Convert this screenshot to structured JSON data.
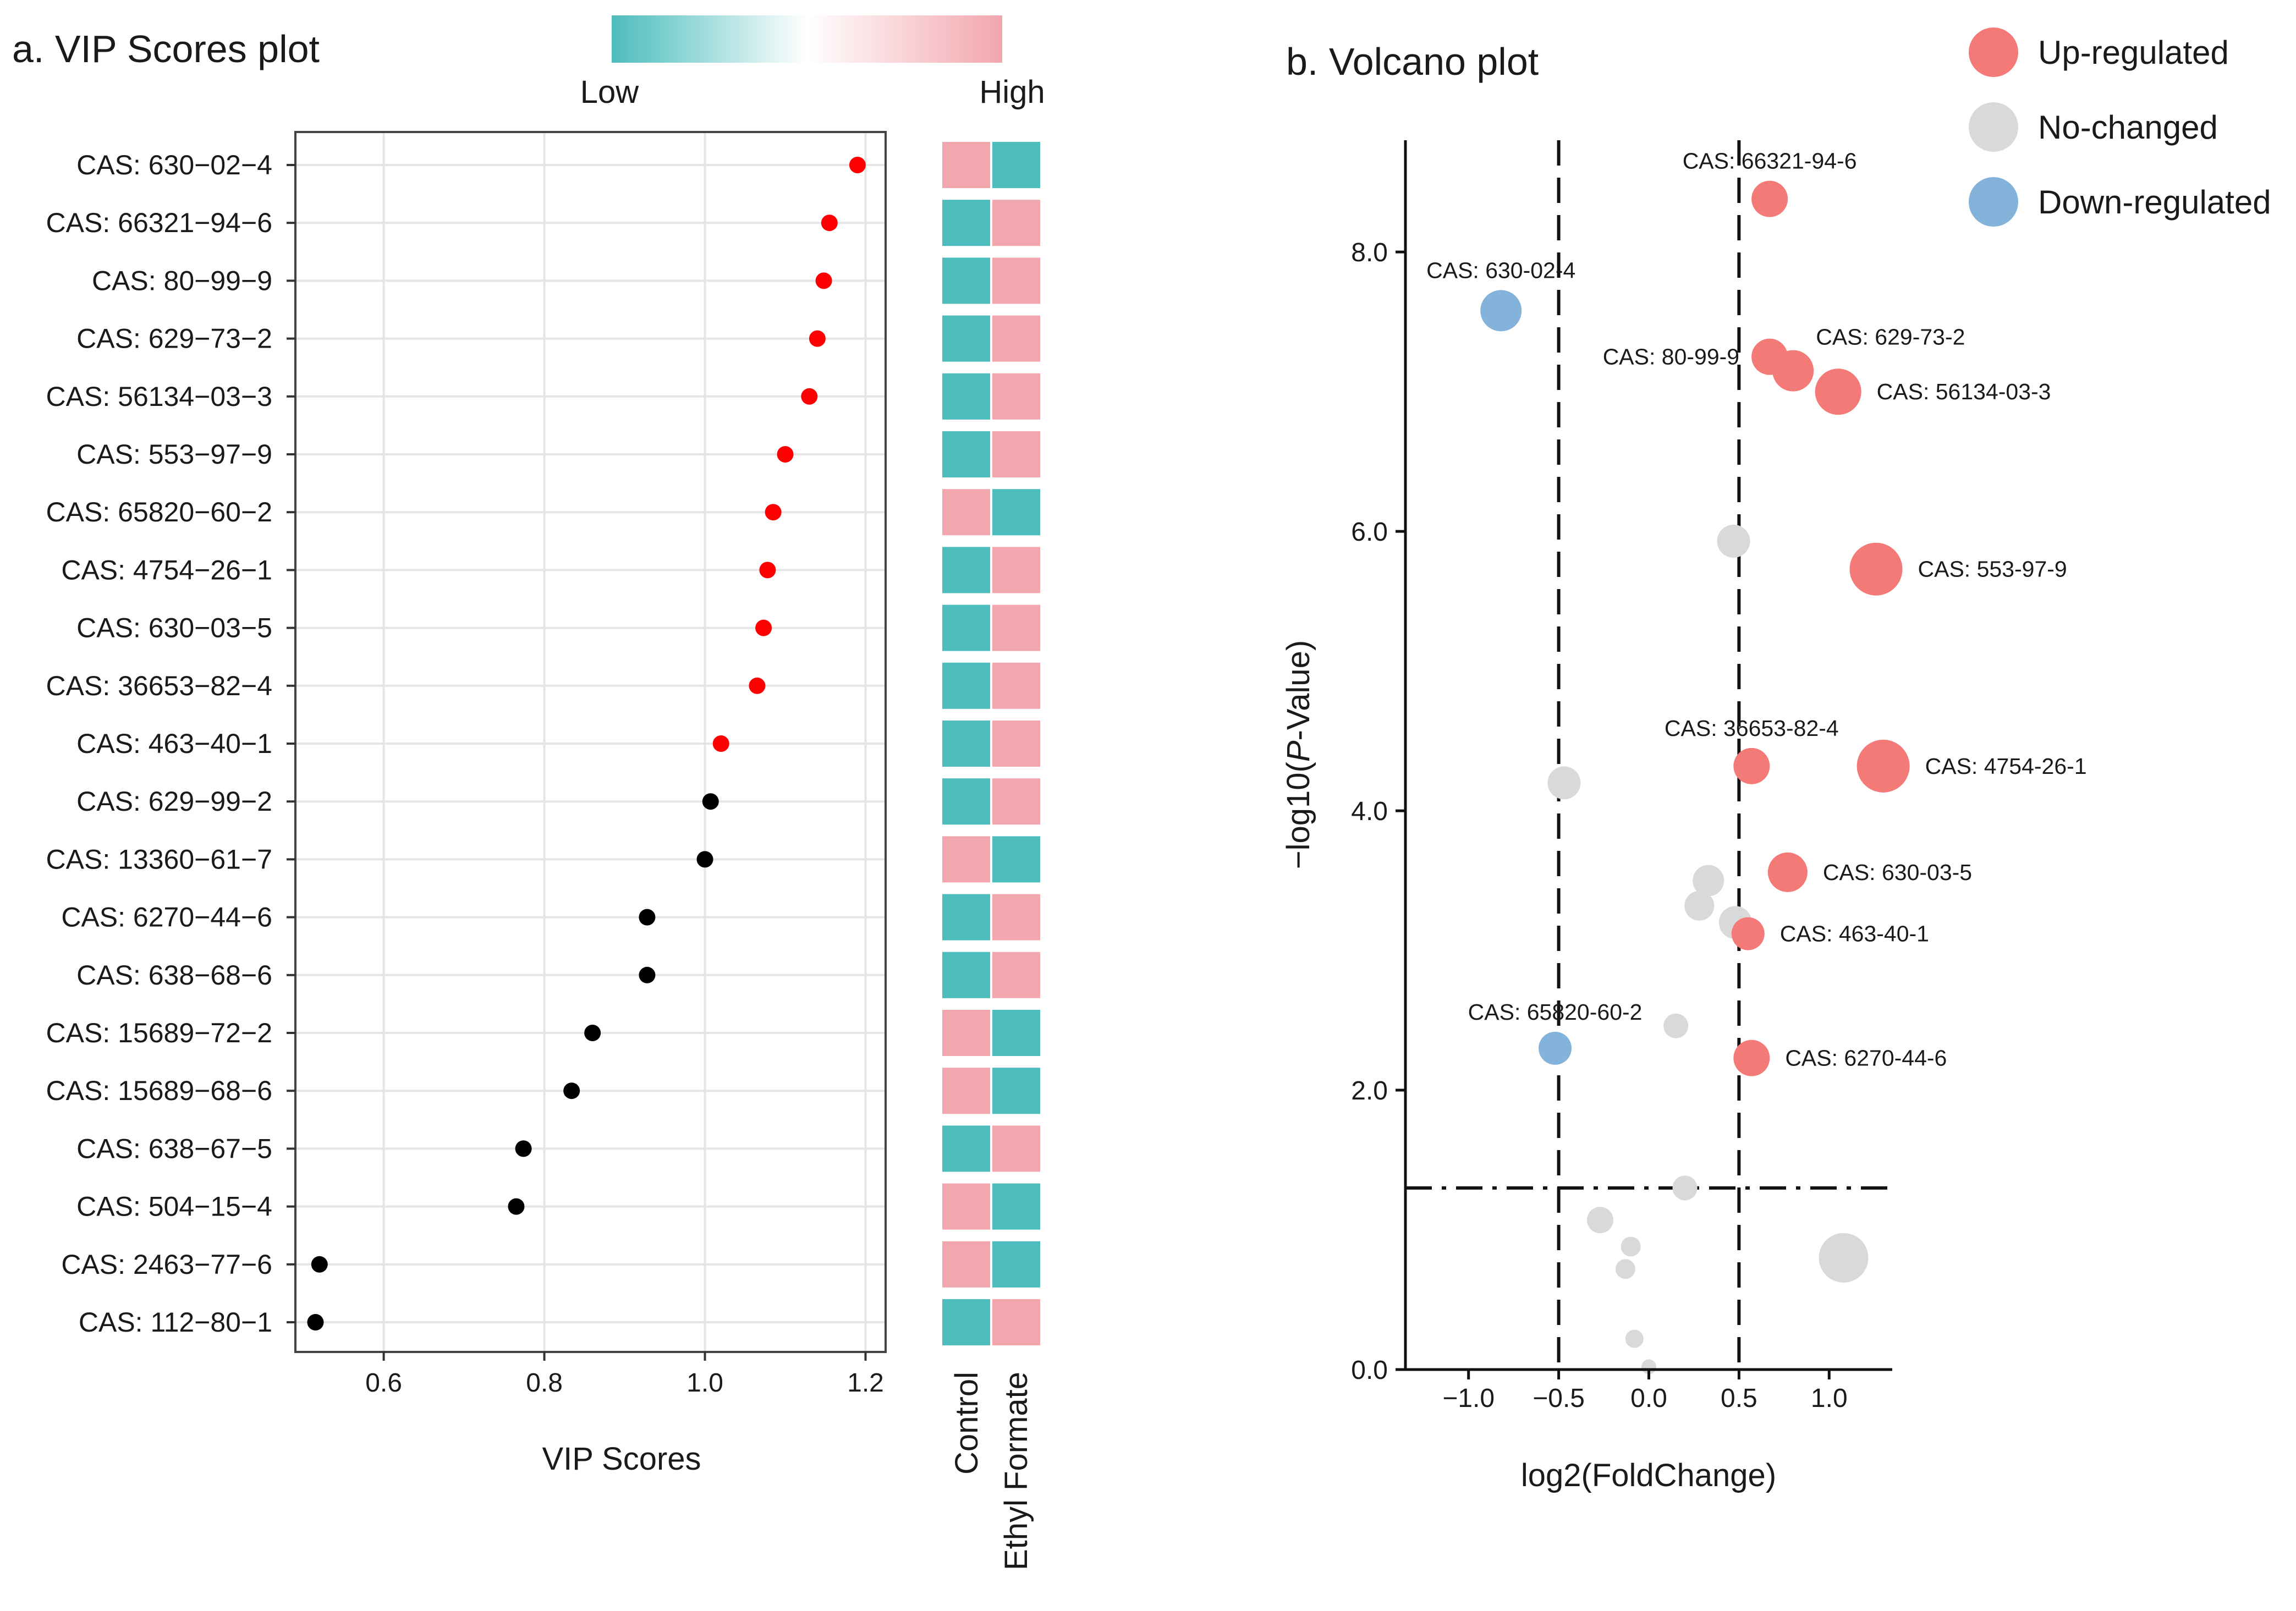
{
  "colors": {
    "low": "#4dbcbc",
    "high": "#f2a6ae",
    "vip_above": "#ff0000",
    "vip_below": "#000000",
    "up": "#f47a78",
    "nochange": "#d9d9d9",
    "down": "#83b3da"
  },
  "colorbar": {
    "low_label": "Low",
    "high_label": "High"
  },
  "chart_data": [
    {
      "type": "scatter",
      "title": "a. VIP Scores plot",
      "xlabel": "VIP Scores",
      "ylabel": "",
      "xlim": [
        0.49,
        1.225
      ],
      "xticks": [
        {
          "value": 0.6,
          "label": "0.6"
        },
        {
          "value": 0.8,
          "label": "0.8"
        },
        {
          "value": 1.0,
          "label": "1.0"
        },
        {
          "value": 1.2,
          "label": "1.2"
        }
      ],
      "vip_threshold": 1.0,
      "heatmap_columns": [
        "Control",
        "Ethyl Formate"
      ],
      "rows": [
        {
          "label": "CAS: 630−02−4",
          "vip": 1.19,
          "control": "high",
          "treatment": "low"
        },
        {
          "label": "CAS: 66321−94−6",
          "vip": 1.155,
          "control": "low",
          "treatment": "high"
        },
        {
          "label": "CAS: 80−99−9",
          "vip": 1.148,
          "control": "low",
          "treatment": "high"
        },
        {
          "label": "CAS: 629−73−2",
          "vip": 1.14,
          "control": "low",
          "treatment": "high"
        },
        {
          "label": "CAS: 56134−03−3",
          "vip": 1.13,
          "control": "low",
          "treatment": "high"
        },
        {
          "label": "CAS: 553−97−9",
          "vip": 1.1,
          "control": "low",
          "treatment": "high"
        },
        {
          "label": "CAS: 65820−60−2",
          "vip": 1.085,
          "control": "high",
          "treatment": "low"
        },
        {
          "label": "CAS: 4754−26−1",
          "vip": 1.078,
          "control": "low",
          "treatment": "high"
        },
        {
          "label": "CAS: 630−03−5",
          "vip": 1.073,
          "control": "low",
          "treatment": "high"
        },
        {
          "label": "CAS: 36653−82−4",
          "vip": 1.065,
          "control": "low",
          "treatment": "high"
        },
        {
          "label": "CAS: 463−40−1",
          "vip": 1.02,
          "control": "low",
          "treatment": "high"
        },
        {
          "label": "CAS: 629−99−2",
          "vip": 1.007,
          "control": "low",
          "treatment": "high"
        },
        {
          "label": "CAS: 13360−61−7",
          "vip": 1.0,
          "control": "high",
          "treatment": "low"
        },
        {
          "label": "CAS: 6270−44−6",
          "vip": 0.928,
          "control": "low",
          "treatment": "high"
        },
        {
          "label": "CAS: 638−68−6",
          "vip": 0.928,
          "control": "low",
          "treatment": "high"
        },
        {
          "label": "CAS: 15689−72−2",
          "vip": 0.86,
          "control": "high",
          "treatment": "low"
        },
        {
          "label": "CAS: 15689−68−6",
          "vip": 0.834,
          "control": "high",
          "treatment": "low"
        },
        {
          "label": "CAS: 638−67−5",
          "vip": 0.774,
          "control": "low",
          "treatment": "high"
        },
        {
          "label": "CAS: 504−15−4",
          "vip": 0.765,
          "control": "high",
          "treatment": "low"
        },
        {
          "label": "CAS: 2463−77−6",
          "vip": 0.52,
          "control": "high",
          "treatment": "low"
        },
        {
          "label": "CAS: 112−80−1",
          "vip": 0.515,
          "control": "low",
          "treatment": "high"
        }
      ]
    },
    {
      "type": "scatter",
      "title": "b. Volcano plot",
      "xlabel": "log2(FoldChange)",
      "ylabel_prefix": "−log10(",
      "ylabel_italic": "P",
      "ylabel_suffix": "-Value)",
      "xlim": [
        -1.35,
        1.35
      ],
      "ylim": [
        0,
        8.8
      ],
      "xticks": [
        {
          "value": -1.0,
          "label": "−1.0"
        },
        {
          "value": -0.5,
          "label": "−0.5"
        },
        {
          "value": 0.0,
          "label": "0.0"
        },
        {
          "value": 0.5,
          "label": "0.5"
        },
        {
          "value": 1.0,
          "label": "1.0"
        }
      ],
      "yticks": [
        {
          "value": 0.0,
          "label": "0.0"
        },
        {
          "value": 2.0,
          "label": "2.0"
        },
        {
          "value": 4.0,
          "label": "4.0"
        },
        {
          "value": 6.0,
          "label": "6.0"
        },
        {
          "value": 8.0,
          "label": "8.0"
        }
      ],
      "fc_thresholds": [
        -0.5,
        0.5
      ],
      "p_threshold": 1.3,
      "legend": [
        {
          "key": "up",
          "label": "Up-regulated"
        },
        {
          "key": "nochange",
          "label": "No-changed"
        },
        {
          "key": "down",
          "label": "Down-regulated"
        }
      ],
      "points": [
        {
          "x": 0.67,
          "y": 8.38,
          "group": "up",
          "size": 1.1,
          "label": "CAS: 66321-94-6",
          "label_pos": "above"
        },
        {
          "x": -0.82,
          "y": 7.58,
          "group": "down",
          "size": 1.25,
          "label": "CAS: 630-02-4",
          "label_pos": "above"
        },
        {
          "x": 0.67,
          "y": 7.25,
          "group": "up",
          "size": 1.1,
          "label": "CAS: 80-99-9",
          "label_pos": "left"
        },
        {
          "x": 0.8,
          "y": 7.15,
          "group": "up",
          "size": 1.25,
          "label": "CAS: 629-73-2",
          "label_pos": "upright"
        },
        {
          "x": 1.05,
          "y": 7.0,
          "group": "up",
          "size": 1.4,
          "label": "CAS: 56134-03-3",
          "label_pos": "right"
        },
        {
          "x": 0.47,
          "y": 5.93,
          "group": "nochange",
          "size": 1.0
        },
        {
          "x": 1.26,
          "y": 5.73,
          "group": "up",
          "size": 1.6,
          "label": "CAS: 553-97-9",
          "label_pos": "right"
        },
        {
          "x": 0.57,
          "y": 4.32,
          "group": "up",
          "size": 1.1,
          "label": "CAS: 36653-82-4",
          "label_pos": "above"
        },
        {
          "x": 1.3,
          "y": 4.32,
          "group": "up",
          "size": 1.6,
          "label": "CAS: 4754-26-1",
          "label_pos": "right"
        },
        {
          "x": -0.47,
          "y": 4.2,
          "group": "nochange",
          "size": 1.0
        },
        {
          "x": 0.77,
          "y": 3.56,
          "group": "up",
          "size": 1.2,
          "label": "CAS: 630-03-5",
          "label_pos": "right"
        },
        {
          "x": 0.33,
          "y": 3.5,
          "group": "nochange",
          "size": 0.95
        },
        {
          "x": 0.28,
          "y": 3.32,
          "group": "nochange",
          "size": 0.9
        },
        {
          "x": 0.48,
          "y": 3.2,
          "group": "nochange",
          "size": 1.0
        },
        {
          "x": 0.55,
          "y": 3.12,
          "group": "up",
          "size": 1.0,
          "label": "CAS: 463-40-1",
          "label_pos": "right"
        },
        {
          "x": 0.15,
          "y": 2.46,
          "group": "nochange",
          "size": 0.75
        },
        {
          "x": -0.52,
          "y": 2.3,
          "group": "down",
          "size": 1.0,
          "label": "CAS: 65820-60-2",
          "label_pos": "above"
        },
        {
          "x": 0.57,
          "y": 2.23,
          "group": "up",
          "size": 1.1,
          "label": "CAS: 6270-44-6",
          "label_pos": "right"
        },
        {
          "x": 0.2,
          "y": 1.3,
          "group": "nochange",
          "size": 0.75
        },
        {
          "x": -0.27,
          "y": 1.07,
          "group": "nochange",
          "size": 0.8
        },
        {
          "x": -0.1,
          "y": 0.88,
          "group": "nochange",
          "size": 0.6
        },
        {
          "x": 1.08,
          "y": 0.8,
          "group": "nochange",
          "size": 1.5
        },
        {
          "x": -0.13,
          "y": 0.72,
          "group": "nochange",
          "size": 0.6
        },
        {
          "x": -0.08,
          "y": 0.22,
          "group": "nochange",
          "size": 0.55
        },
        {
          "x": 0.0,
          "y": 0.02,
          "group": "nochange",
          "size": 0.45
        }
      ]
    }
  ]
}
